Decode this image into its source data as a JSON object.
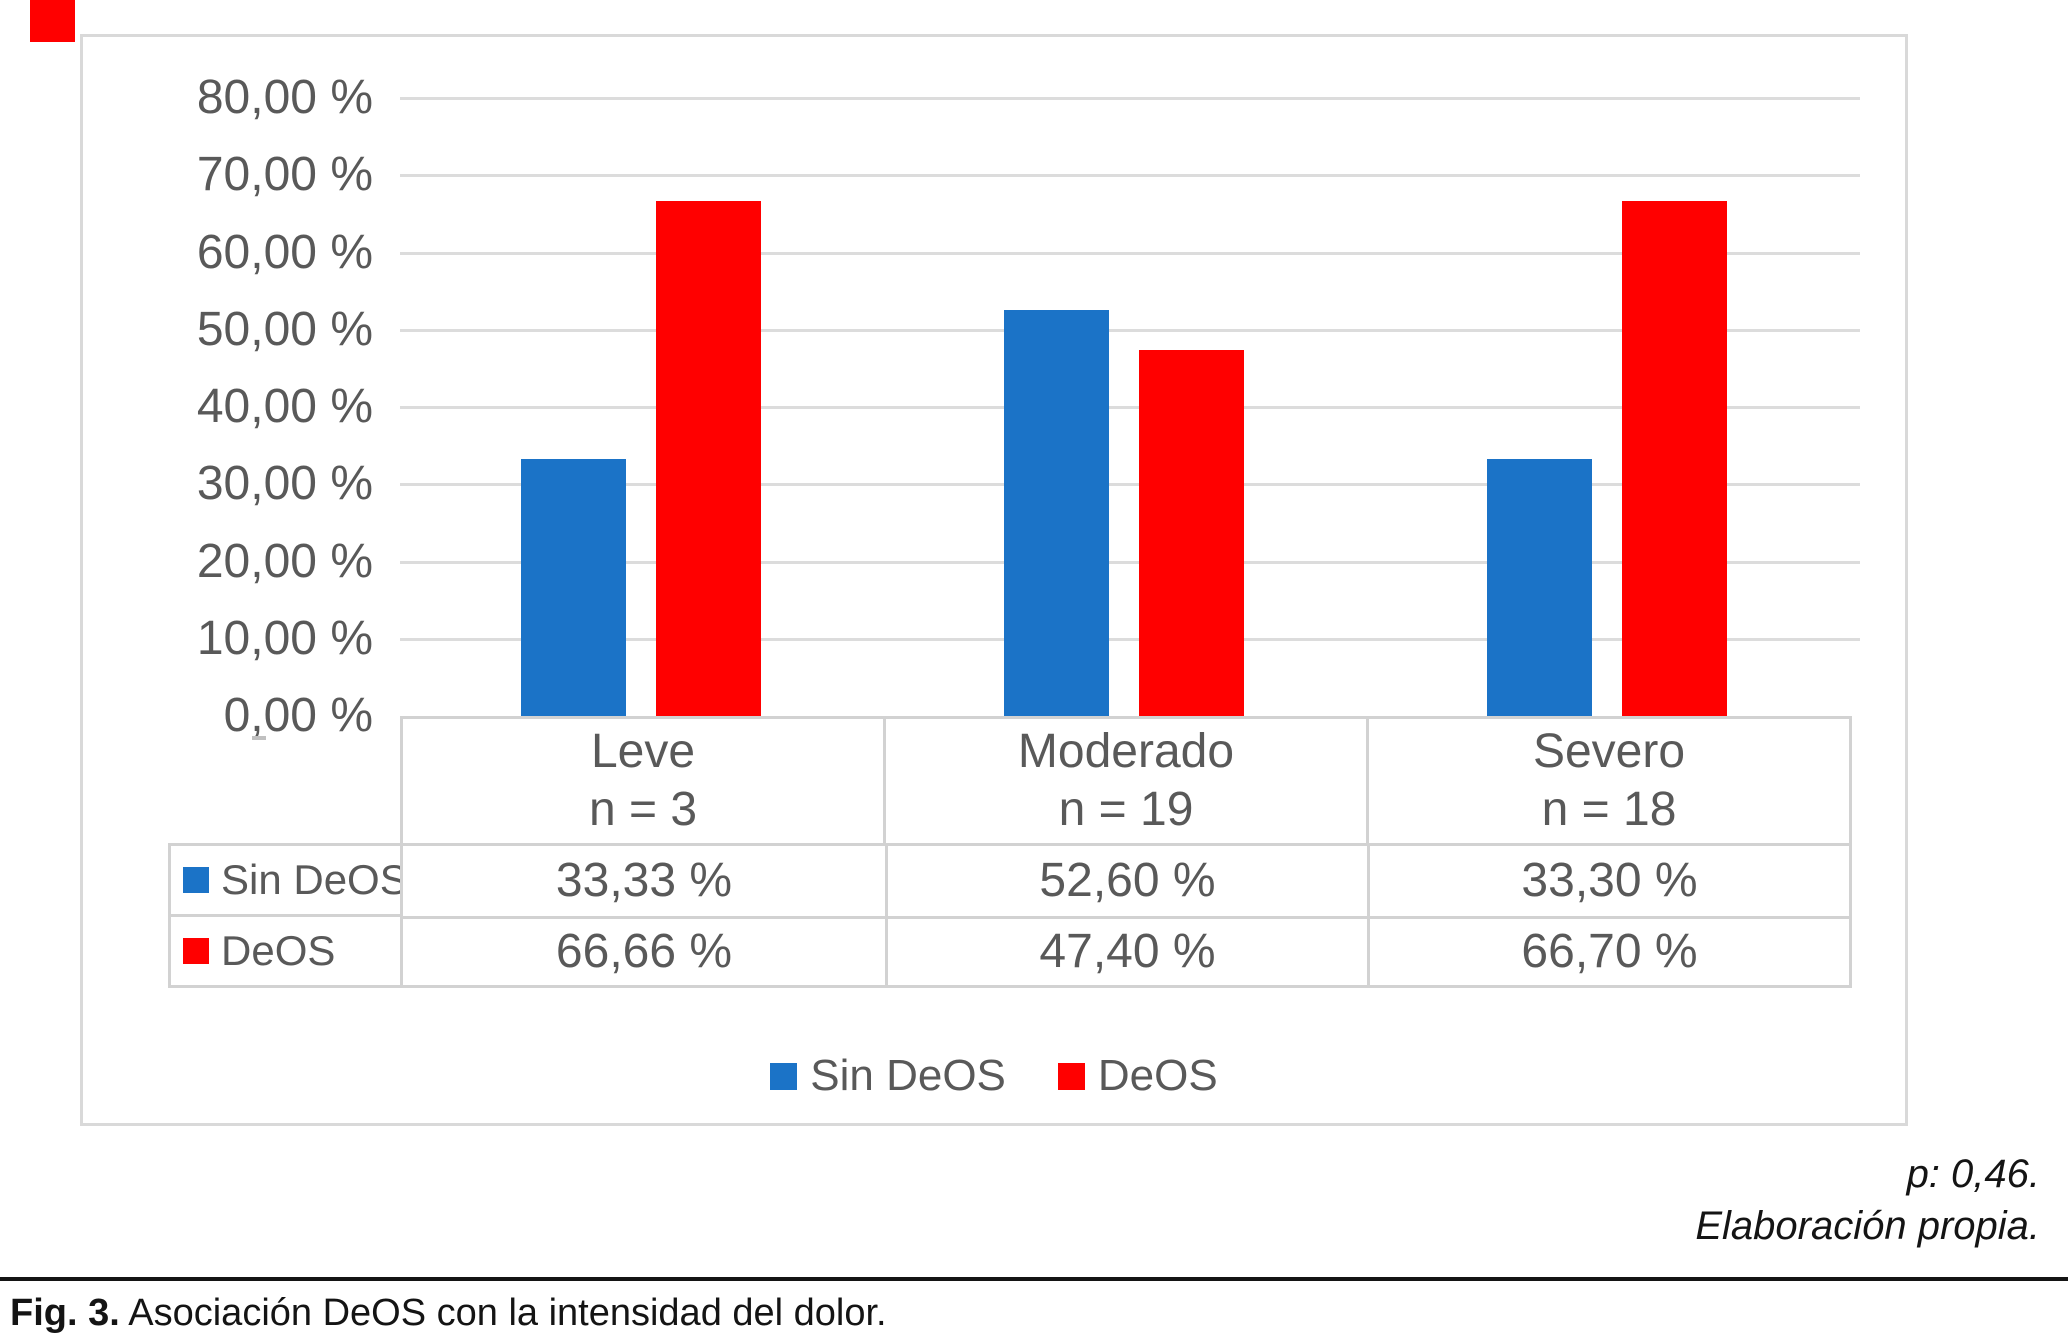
{
  "page": {
    "corner_marker_color": "#ff0000"
  },
  "chart_data": {
    "type": "bar",
    "title": "",
    "xlabel": "",
    "ylabel": "",
    "ylim": [
      0,
      80
    ],
    "ytick_step": 10,
    "grid": true,
    "legend_position": "bottom",
    "yticks_display": [
      "0,00 %",
      "10,00 %",
      "20,00 %",
      "30,00 %",
      "40,00 %",
      "50,00 %",
      "60,00 %",
      "70,00 %",
      "80,00 %"
    ],
    "categories": [
      {
        "label": "Leve",
        "n_label": "n = 3"
      },
      {
        "label": "Moderado",
        "n_label": "n = 19"
      },
      {
        "label": "Severo",
        "n_label": "n = 18"
      }
    ],
    "series": [
      {
        "name": "Sin DeOS",
        "color": "#1b73c7",
        "values": [
          33.33,
          52.6,
          33.3
        ],
        "display_values": [
          "33,33 %",
          "52,60 %",
          "33,30 %"
        ]
      },
      {
        "name": "DeOS",
        "color": "#ff0000",
        "values": [
          66.66,
          47.4,
          66.7
        ],
        "display_values": [
          "66,66 %",
          "47,40 %",
          "66,70 %"
        ]
      }
    ]
  },
  "annotations": {
    "p_value": "p: 0,46.",
    "source": "Elaboración propia."
  },
  "figure_caption": {
    "label": "Fig. 3.",
    "text": " Asociación DeOS con la intensidad del dolor."
  }
}
